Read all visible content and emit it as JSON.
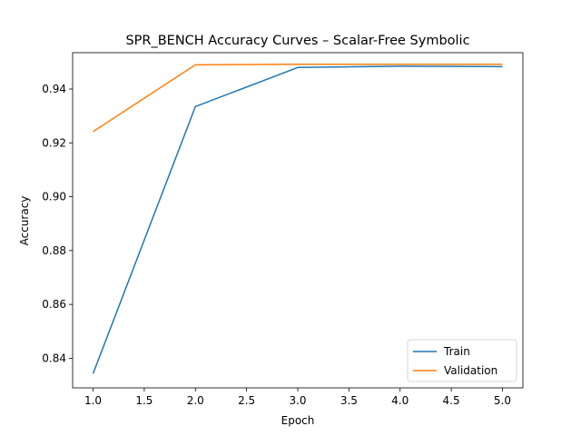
{
  "chart_data": {
    "type": "line",
    "title": "SPR_BENCH Accuracy Curves – Scalar-Free Symbolic",
    "xlabel": "Epoch",
    "ylabel": "Accuracy",
    "x": [
      1,
      2,
      3,
      4,
      5
    ],
    "xlim": [
      0.8,
      5.2
    ],
    "ylim": [
      0.829,
      0.9535
    ],
    "xticks": [
      1.0,
      1.5,
      2.0,
      2.5,
      3.0,
      3.5,
      4.0,
      4.5,
      5.0
    ],
    "xtick_labels": [
      "1.0",
      "1.5",
      "2.0",
      "2.5",
      "3.0",
      "3.5",
      "4.0",
      "4.5",
      "5.0"
    ],
    "yticks": [
      0.84,
      0.86,
      0.88,
      0.9,
      0.92,
      0.94
    ],
    "ytick_labels": [
      "0.84",
      "0.86",
      "0.88",
      "0.90",
      "0.92",
      "0.94"
    ],
    "grid": false,
    "legend_position": "lower-right",
    "series": [
      {
        "name": "Train",
        "color": "#1f77b4",
        "values": [
          0.8343,
          0.9335,
          0.948,
          0.9485,
          0.9483
        ]
      },
      {
        "name": "Validation",
        "color": "#ff7f0e",
        "values": [
          0.9242,
          0.949,
          0.9492,
          0.9492,
          0.9492
        ]
      }
    ]
  }
}
